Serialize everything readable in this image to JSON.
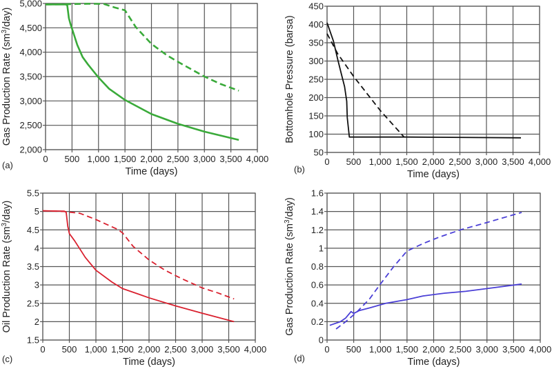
{
  "chart_data": [
    {
      "id": "a",
      "type": "line",
      "panel_label": "(a)",
      "xlabel": "Time (days)",
      "ylabel": "Gas Production Rate (sm3/day)",
      "ylabel_parts": [
        "Gas Production Rate (sm",
        "3",
        "/day)"
      ],
      "xlim": [
        0,
        4000
      ],
      "ylim": [
        2000,
        5000
      ],
      "grid": true,
      "xticks": [
        0,
        500,
        1000,
        1500,
        2000,
        2500,
        3000,
        3500,
        4000
      ],
      "xtick_labels": [
        "0",
        "500",
        "1,000",
        "1,500",
        "2,000",
        "2,500",
        "3,000",
        "3,500",
        "4,000"
      ],
      "yticks": [
        2000,
        2500,
        3000,
        3500,
        4000,
        4500,
        5000
      ],
      "ytick_labels": [
        "2,000",
        "2,500",
        "3,000",
        "3,500",
        "4,000",
        "4,500",
        "5,000"
      ],
      "color": "#3aaa3a",
      "series": [
        {
          "name": "solid",
          "style": "solid",
          "x": [
            0,
            380,
            410,
            440,
            470,
            500,
            600,
            700,
            800,
            1000,
            1200,
            1500,
            2000,
            2500,
            3000,
            3650
          ],
          "y": [
            4980,
            4980,
            4960,
            4700,
            4580,
            4480,
            4150,
            3900,
            3750,
            3480,
            3250,
            3020,
            2730,
            2530,
            2370,
            2200
          ]
        },
        {
          "name": "dashed",
          "style": "dashed",
          "x": [
            0,
            400,
            800,
            1100,
            1300,
            1500,
            1700,
            2000,
            2300,
            2600,
            3000,
            3300,
            3650
          ],
          "y": [
            4980,
            4985,
            4995,
            4990,
            4920,
            4860,
            4520,
            4170,
            3930,
            3740,
            3500,
            3350,
            3210
          ]
        }
      ]
    },
    {
      "id": "b",
      "type": "line",
      "panel_label": "(b)",
      "xlabel": "Time (days)",
      "ylabel": "Bottomhole Pressure (barsa)",
      "xlim": [
        0,
        4000
      ],
      "ylim": [
        50,
        450
      ],
      "grid": true,
      "xticks": [
        0,
        500,
        1000,
        1500,
        2000,
        2500,
        3000,
        3500,
        4000
      ],
      "xtick_labels": [
        "0",
        "500",
        "1,000",
        "1,500",
        "2,000",
        "2,500",
        "3,000",
        "3,500",
        "4,000"
      ],
      "yticks": [
        50,
        100,
        150,
        200,
        250,
        300,
        350,
        400,
        450
      ],
      "ytick_labels": [
        "50",
        "100",
        "150",
        "200",
        "250",
        "300",
        "350",
        "400",
        "450"
      ],
      "color": "#111111",
      "series": [
        {
          "name": "solid",
          "style": "solid",
          "x": [
            0,
            120,
            200,
            260,
            330,
            370,
            380,
            420,
            450,
            1500,
            3650
          ],
          "y": [
            405,
            355,
            305,
            270,
            230,
            190,
            145,
            92,
            92,
            92,
            90
          ]
        },
        {
          "name": "dashed",
          "style": "dashed",
          "x": [
            0,
            200,
            500,
            1000,
            1450
          ],
          "y": [
            375,
            320,
            258,
            165,
            92
          ]
        }
      ]
    },
    {
      "id": "c",
      "type": "line",
      "panel_label": "(c)",
      "xlabel": "Time (days)",
      "ylabel": "Oil Production Rate (sm3/day)",
      "ylabel_parts": [
        "Oil Production Rate (sm",
        "3",
        "/day)"
      ],
      "xlim": [
        0,
        4000
      ],
      "ylim": [
        1.5,
        5.5
      ],
      "grid": true,
      "xticks": [
        0,
        500,
        1000,
        1500,
        2000,
        2500,
        3000,
        3500,
        4000
      ],
      "xtick_labels": [
        "0",
        "500",
        "1,000",
        "1,500",
        "2,000",
        "2,500",
        "3,000",
        "3,500",
        "4,000"
      ],
      "yticks": [
        1.5,
        2,
        2.5,
        3,
        3.5,
        4,
        4.5,
        5,
        5.5
      ],
      "ytick_labels": [
        "1.5",
        "2",
        "2.5",
        "3",
        "3.5",
        "4",
        "4.5",
        "5",
        "5.5"
      ],
      "color": "#d9202e",
      "series": [
        {
          "name": "solid",
          "style": "solid",
          "x": [
            0,
            400,
            440,
            470,
            500,
            600,
            800,
            1000,
            1300,
            1500,
            1800,
            2000,
            2500,
            3000,
            3600
          ],
          "y": [
            5.02,
            5.01,
            4.98,
            4.6,
            4.4,
            4.2,
            3.75,
            3.4,
            3.08,
            2.9,
            2.75,
            2.65,
            2.43,
            2.23,
            2.0
          ]
        },
        {
          "name": "dashed",
          "style": "dashed",
          "x": [
            0,
            400,
            700,
            1000,
            1200,
            1400,
            1500,
            1700,
            2000,
            2300,
            2600,
            3000,
            3300,
            3600
          ],
          "y": [
            5.02,
            5.0,
            4.95,
            4.78,
            4.65,
            4.52,
            4.42,
            4.05,
            3.68,
            3.4,
            3.18,
            2.92,
            2.78,
            2.62
          ]
        }
      ]
    },
    {
      "id": "d",
      "type": "line",
      "panel_label": "(d)",
      "xlabel": "Time (days)",
      "ylabel": "Gas Production Rate (sm3/day)",
      "ylabel_parts": [
        "Gas Production Rate (sm",
        "3",
        "/day)"
      ],
      "xlim": [
        0,
        4000
      ],
      "ylim": [
        0,
        1.6
      ],
      "grid": true,
      "xticks": [
        0,
        500,
        1000,
        1500,
        2000,
        2500,
        3000,
        3500,
        4000
      ],
      "xtick_labels": [
        "0",
        "500",
        "1,000",
        "1,500",
        "2,000",
        "2,500",
        "3,000",
        "3,500",
        "4,000"
      ],
      "yticks": [
        0,
        0.2,
        0.4,
        0.6,
        0.8,
        1.0,
        1.2,
        1.4,
        1.6
      ],
      "ytick_labels": [
        "0",
        "0.2",
        "0.4",
        "0.6",
        "0.8",
        "1",
        "1.2",
        "1.4",
        "1.6"
      ],
      "color": "#4a3fd6",
      "series": [
        {
          "name": "solid",
          "style": "solid",
          "x": [
            50,
            250,
            350,
            450,
            500,
            600,
            800,
            1100,
            1500,
            1800,
            2200,
            2600,
            3000,
            3650
          ],
          "y": [
            0.16,
            0.2,
            0.24,
            0.31,
            0.29,
            0.32,
            0.35,
            0.4,
            0.44,
            0.48,
            0.51,
            0.53,
            0.56,
            0.61
          ]
        },
        {
          "name": "dashed",
          "style": "dashed",
          "x": [
            170,
            350,
            550,
            800,
            1000,
            1250,
            1500,
            1800,
            2100,
            2500,
            3000,
            3650
          ],
          "y": [
            0.12,
            0.2,
            0.3,
            0.45,
            0.61,
            0.8,
            0.97,
            1.05,
            1.12,
            1.2,
            1.28,
            1.39
          ]
        }
      ]
    }
  ]
}
